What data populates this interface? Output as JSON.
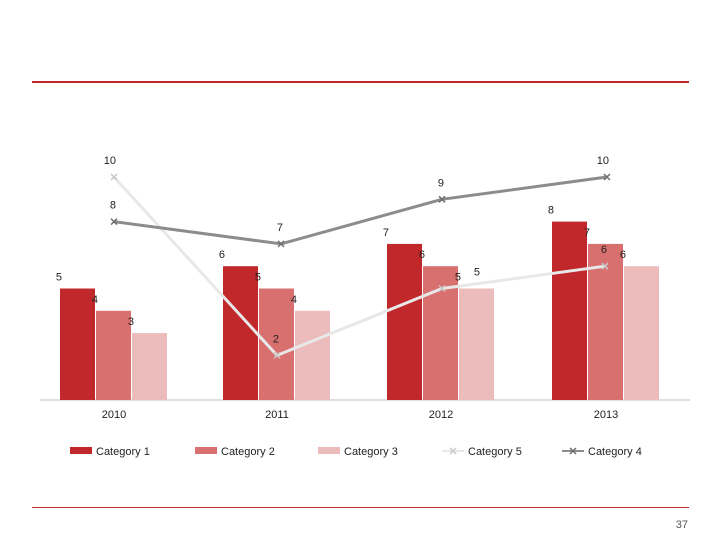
{
  "slide": {
    "page_number": "37"
  },
  "colors": {
    "accent": "#c0282b",
    "category_1": "#c0282b",
    "category_2": "#d87070",
    "category_3": "#ecbcbc",
    "category_5": "#e8e8e8",
    "category_4": "#8c8c8c"
  },
  "chart_data": {
    "type": "bar",
    "categories": [
      "2010",
      "2011",
      "2012",
      "2013"
    ],
    "ylim": [
      0,
      11
    ],
    "grid": false,
    "legend_position": "bottom",
    "series": [
      {
        "name": "Category 1",
        "type": "bar",
        "values": [
          5,
          6,
          7,
          8
        ]
      },
      {
        "name": "Category 2",
        "type": "bar",
        "values": [
          4,
          5,
          6,
          7
        ]
      },
      {
        "name": "Category 3",
        "type": "bar",
        "values": [
          3,
          4,
          5,
          6
        ]
      },
      {
        "name": "Category 5",
        "type": "line",
        "values": [
          10,
          2,
          5,
          6
        ]
      },
      {
        "name": "Category 4",
        "type": "line",
        "values": [
          8,
          7,
          9,
          10
        ]
      }
    ]
  }
}
